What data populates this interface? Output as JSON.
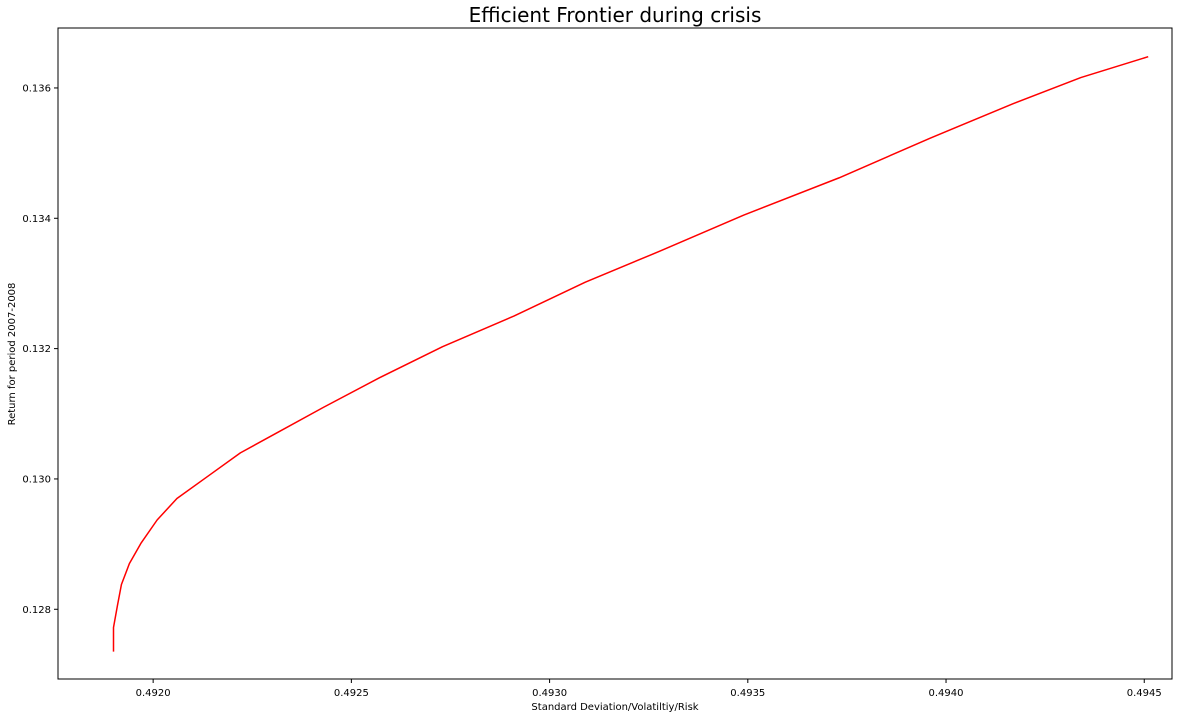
{
  "chart_data": {
    "type": "line",
    "title": "Efficient Frontier during crisis",
    "xlabel": "Standard Deviation/Volatiltiy/Risk",
    "ylabel": "Return for period 2007-2008",
    "xlim": [
      0.49176,
      0.49457
    ],
    "ylim": [
      0.12693,
      0.13692
    ],
    "grid": false,
    "x_ticks": [
      0.492,
      0.4925,
      0.493,
      0.4935,
      0.494,
      0.4945
    ],
    "x_tick_labels": [
      "0.4920",
      "0.4925",
      "0.4930",
      "0.4935",
      "0.4940",
      "0.4945"
    ],
    "y_ticks": [
      0.128,
      0.13,
      0.132,
      0.134,
      0.136
    ],
    "y_tick_labels": [
      "0.128",
      "0.130",
      "0.132",
      "0.134",
      "0.136"
    ],
    "series": [
      {
        "color": "#ff0000",
        "x": [
          0.4919,
          0.4919,
          0.49191,
          0.49192,
          0.49194,
          0.49197,
          0.49201,
          0.49206,
          0.49214,
          0.49222,
          0.49231,
          0.49243,
          0.49257,
          0.49273,
          0.49291,
          0.49309,
          0.49328,
          0.49349,
          0.49373,
          0.49396,
          0.49417,
          0.49434,
          0.49451
        ],
        "y": [
          0.12735,
          0.12772,
          0.12806,
          0.12838,
          0.1287,
          0.12902,
          0.12937,
          0.1297,
          0.13005,
          0.1304,
          0.1307,
          0.1311,
          0.13155,
          0.13203,
          0.1325,
          0.13302,
          0.1335,
          0.13405,
          0.13462,
          0.13523,
          0.13576,
          0.13616,
          0.13648
        ]
      }
    ]
  }
}
